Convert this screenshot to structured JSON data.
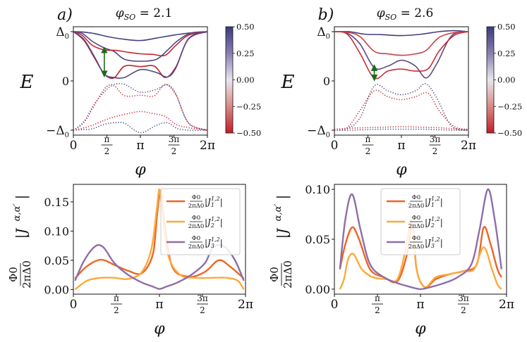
{
  "chart_data": [
    {
      "id": "a",
      "type": "line",
      "panel_label": "a)",
      "title": "φ_SO = 2.1",
      "title_phi": "φ",
      "title_sub": "SO",
      "title_val": "= 2.1",
      "xlabel": "φ",
      "ylabel": "E",
      "xlim": [
        0,
        6.2832
      ],
      "ylim": [
        -1.1,
        1.1
      ],
      "xticks": [
        0,
        1.5708,
        3.1416,
        4.7124,
        6.2832
      ],
      "yticks": [
        -1,
        0,
        1
      ],
      "ytick_labels": [
        "−Δ0",
        "0",
        "Δ0"
      ],
      "colorbar": {
        "range": [
          -0.5,
          0.5
        ],
        "ticks": [
          0.5,
          0.25,
          0.0,
          -0.25,
          -0.5
        ],
        "labels": [
          "0.50",
          "0.25",
          "0.00",
          "−0.25",
          "−0.50"
        ],
        "colors": [
          "#3b3b7e",
          "#c31d26"
        ]
      },
      "arrow": {
        "x": 1.45,
        "y1": 0.63,
        "y2": 0.14
      },
      "solid_series": [
        {
          "name": "band1",
          "tint": 0.45,
          "x": [
            0,
            0.5,
            1.0,
            1.6,
            2.3,
            3.1416,
            3.9,
            4.7,
            5.4,
            5.9,
            6.2832
          ],
          "y": [
            1.0,
            0.99,
            0.96,
            0.9,
            0.85,
            0.82,
            0.87,
            0.93,
            0.97,
            0.99,
            1.0
          ]
        },
        {
          "name": "band2",
          "tint": 0.35,
          "x": [
            0,
            0.4,
            0.9,
            1.45,
            1.9,
            2.4,
            3.1416,
            3.9,
            4.4,
            4.9,
            5.5,
            6.2832
          ],
          "y": [
            1.0,
            0.97,
            0.8,
            0.67,
            0.6,
            0.44,
            0.4,
            0.44,
            0.62,
            0.82,
            0.97,
            1.0
          ]
        },
        {
          "name": "band3",
          "tint": -0.4,
          "x": [
            0,
            0.4,
            0.9,
            1.45,
            2.0,
            2.6,
            3.1416,
            3.7,
            4.3,
            4.8,
            5.4,
            6.2832
          ],
          "y": [
            1.0,
            0.93,
            0.72,
            0.63,
            0.62,
            0.58,
            0.55,
            0.54,
            0.52,
            0.72,
            0.93,
            1.0
          ]
        },
        {
          "name": "band4",
          "tint": -0.45,
          "x": [
            0,
            0.5,
            1.0,
            1.45,
            1.9,
            2.4,
            3.1416,
            3.8,
            4.3,
            4.8,
            5.4,
            6.2832
          ],
          "y": [
            1.0,
            0.82,
            0.46,
            0.14,
            0.06,
            0.3,
            0.29,
            0.3,
            0.07,
            0.28,
            0.85,
            1.0
          ]
        },
        {
          "name": "band5",
          "tint": 0.35,
          "x": [
            0,
            0.5,
            1.0,
            1.45,
            1.9,
            2.4,
            3.1416,
            3.9,
            4.4,
            4.8,
            5.4,
            6.2832
          ],
          "y": [
            1.0,
            0.84,
            0.48,
            0.14,
            0.07,
            0.07,
            0.23,
            0.17,
            0.08,
            0.26,
            0.86,
            1.0
          ]
        }
      ],
      "dotted_series": [
        {
          "name": "d1",
          "tint": 0.4,
          "x": [
            0,
            0.5,
            1.0,
            1.5,
            1.9,
            2.4,
            3.1416,
            3.9,
            4.4,
            4.8,
            5.4,
            6.2832
          ],
          "y": [
            -1.0,
            -0.84,
            -0.48,
            -0.14,
            -0.07,
            -0.07,
            -0.23,
            -0.17,
            -0.08,
            -0.26,
            -0.86,
            -1.0
          ]
        },
        {
          "name": "d2",
          "tint": -0.4,
          "x": [
            0,
            0.5,
            1.0,
            1.5,
            1.9,
            2.4,
            3.1416,
            3.8,
            4.3,
            4.8,
            5.4,
            6.2832
          ],
          "y": [
            -1.0,
            -0.82,
            -0.46,
            -0.2,
            -0.1,
            -0.3,
            -0.29,
            -0.3,
            -0.07,
            -0.28,
            -0.85,
            -1.0
          ]
        },
        {
          "name": "d3",
          "tint": -0.4,
          "x": [
            0,
            0.4,
            0.9,
            1.45,
            2.0,
            2.6,
            3.1416,
            3.7,
            4.3,
            4.8,
            5.4,
            6.2832
          ],
          "y": [
            -1.0,
            -0.96,
            -0.9,
            -0.8,
            -0.72,
            -0.66,
            -0.62,
            -0.66,
            -0.72,
            -0.88,
            -0.95,
            -1.0
          ]
        },
        {
          "name": "d4",
          "tint": 0.4,
          "x": [
            0,
            0.4,
            0.9,
            1.45,
            1.9,
            2.4,
            3.1416,
            3.9,
            4.4,
            4.9,
            5.5,
            6.2832
          ],
          "y": [
            -1.0,
            -0.99,
            -0.97,
            -0.88,
            -0.85,
            -0.86,
            -1.05,
            -0.9,
            -0.85,
            -0.97,
            -1.0,
            -1.0
          ]
        }
      ]
    },
    {
      "id": "b",
      "type": "line",
      "panel_label": "b)",
      "title": "φ_SO = 2.6",
      "title_phi": "φ",
      "title_sub": "SO",
      "title_val": "= 2.6",
      "xlabel": "φ",
      "ylabel": "E",
      "xlim": [
        0,
        6.2832
      ],
      "ylim": [
        -1.1,
        1.1
      ],
      "xticks": [
        0,
        1.5708,
        3.1416,
        4.7124,
        6.2832
      ],
      "yticks": [
        -1,
        0,
        1
      ],
      "ytick_labels": [
        "−Δ0",
        "0",
        "Δ0"
      ],
      "colorbar": {
        "range": [
          -0.5,
          0.5
        ],
        "ticks": [
          0.5,
          0.25,
          0.0,
          -0.25,
          -0.5
        ],
        "labels": [
          "0.50",
          "0.25",
          "0.00",
          "−0.25",
          "−0.50"
        ],
        "colors": [
          "#3b3b7e",
          "#c31d26"
        ]
      },
      "arrow": {
        "x": 1.87,
        "y1": 0.27,
        "y2": 0.06
      },
      "solid_series": [
        {
          "name": "band1",
          "tint": 0.45,
          "x": [
            0,
            0.7,
            1.4,
            2.2,
            3.1416,
            4.1,
            4.9,
            5.6,
            6.2832
          ],
          "y": [
            1.0,
            1.0,
            0.95,
            0.94,
            0.92,
            0.95,
            1.0,
            1.02,
            1.0
          ]
        },
        {
          "name": "band2",
          "tint": 0.3,
          "x": [
            0,
            0.6,
            1.2,
            1.87,
            2.5,
            3.1416,
            3.8,
            4.3,
            4.8,
            5.5,
            6.2832
          ],
          "y": [
            1.0,
            0.97,
            0.75,
            0.27,
            0.3,
            0.42,
            0.3,
            0.06,
            0.35,
            0.92,
            1.0
          ]
        },
        {
          "name": "band3",
          "tint": -0.35,
          "x": [
            0,
            0.6,
            1.2,
            1.87,
            2.5,
            3.1416,
            3.8,
            4.4,
            4.9,
            5.6,
            6.2832
          ],
          "y": [
            1.0,
            0.95,
            0.56,
            0.06,
            0.2,
            0.24,
            0.2,
            0.25,
            0.6,
            0.92,
            1.0
          ]
        },
        {
          "name": "band4",
          "tint": -0.2,
          "x": [
            0,
            0.6,
            1.2,
            1.87,
            2.5,
            3.1416,
            3.8,
            4.3,
            4.9,
            5.6,
            6.2832
          ],
          "y": [
            1.0,
            0.99,
            0.9,
            0.6,
            0.55,
            0.52,
            0.55,
            0.62,
            0.88,
            0.98,
            1.0
          ]
        }
      ],
      "dotted_series": [
        {
          "name": "d1",
          "tint": 0.4,
          "x": [
            0,
            0.6,
            1.2,
            1.87,
            2.5,
            3.1416,
            3.8,
            4.3,
            4.8,
            5.5,
            6.2832
          ],
          "y": [
            -1.0,
            -0.97,
            -0.75,
            -0.1,
            -0.2,
            -0.28,
            -0.2,
            -0.06,
            -0.35,
            -0.92,
            -1.0
          ]
        },
        {
          "name": "d2",
          "tint": -0.4,
          "x": [
            0,
            0.6,
            1.2,
            1.87,
            2.5,
            3.1416,
            3.8,
            4.4,
            4.9,
            5.6,
            6.2832
          ],
          "y": [
            -1.0,
            -0.95,
            -0.6,
            -0.2,
            -0.32,
            -0.38,
            -0.32,
            -0.25,
            -0.6,
            -0.92,
            -1.0
          ]
        },
        {
          "name": "d3",
          "tint": -0.4,
          "x": [
            0,
            0.7,
            1.4,
            2.2,
            3.1416,
            4.1,
            4.9,
            5.6,
            6.2832
          ],
          "y": [
            -0.98,
            -0.96,
            -0.95,
            -0.94,
            -0.93,
            -0.94,
            -0.95,
            -0.97,
            -0.98
          ]
        },
        {
          "name": "d4",
          "tint": 0.4,
          "x": [
            0,
            0.7,
            1.4,
            2.2,
            3.1416,
            4.1,
            4.9,
            5.6,
            6.2832
          ],
          "y": [
            -1.0,
            -1.0,
            -0.99,
            -0.98,
            -0.98,
            -0.98,
            -0.99,
            -1.0,
            -1.0
          ]
        }
      ]
    },
    {
      "id": "c",
      "type": "line",
      "xlabel": "φ",
      "ylabel_top": "Φ0",
      "ylabel_bottom": "2πΔ0",
      "ylabel_rest": "|J^{α,α′}|",
      "xlim": [
        0,
        6.2832
      ],
      "ylim": [
        -0.008,
        0.18
      ],
      "xticks": [
        0,
        1.5708,
        3.1416,
        4.7124,
        6.2832
      ],
      "yticks": [
        0.0,
        0.05,
        0.1,
        0.15
      ],
      "ytick_labels": [
        "0.00",
        "0.05",
        "0.10",
        "0.15"
      ],
      "legend_position": "top-right",
      "series": [
        {
          "name": "J1",
          "legend_frac_top": "Φ0",
          "legend_frac_bottom": "2πΔ0",
          "legend_text": "|J1^{1,2}|",
          "color": "#ee6524",
          "x": [
            0.06,
            0.5,
            1.0,
            1.5,
            2.0,
            2.5,
            2.9,
            3.05,
            3.18,
            3.3,
            3.6,
            4.2,
            4.8,
            5.3,
            5.7,
            6.22
          ],
          "y": [
            0.019,
            0.04,
            0.051,
            0.042,
            0.032,
            0.028,
            0.06,
            0.125,
            0.17,
            0.125,
            0.04,
            0.022,
            0.03,
            0.05,
            0.04,
            0.019
          ]
        },
        {
          "name": "J2",
          "legend_frac_top": "Φ0",
          "legend_frac_bottom": "2πΔ0",
          "legend_text": "|J2^{1,2}|",
          "color": "#fbaa3c",
          "x": [
            0.06,
            0.5,
            1.0,
            1.5,
            2.0,
            2.5,
            2.85,
            3.05,
            3.14,
            3.23,
            3.45,
            3.9,
            4.5,
            5.1,
            5.6,
            6.0,
            6.22
          ],
          "y": [
            0.0,
            0.015,
            0.02,
            0.02,
            0.018,
            0.03,
            0.07,
            0.14,
            0.172,
            0.14,
            0.06,
            0.025,
            0.02,
            0.02,
            0.02,
            0.015,
            0.0
          ]
        },
        {
          "name": "J3",
          "legend_frac_top": "Φ0",
          "legend_frac_bottom": "2πΔ0",
          "legend_text": "|J3^{1,2}|",
          "color": "#8e6ea8",
          "x": [
            0.06,
            0.4,
            0.8,
            1.1,
            1.5,
            2.0,
            2.5,
            2.9,
            3.1416,
            3.4,
            3.8,
            4.3,
            4.8,
            5.1,
            5.5,
            5.9,
            6.22
          ],
          "y": [
            0.015,
            0.05,
            0.074,
            0.072,
            0.045,
            0.025,
            0.012,
            0.005,
            0.001,
            0.005,
            0.012,
            0.025,
            0.045,
            0.072,
            0.074,
            0.05,
            0.015
          ]
        }
      ]
    },
    {
      "id": "d",
      "type": "line",
      "xlabel": "φ",
      "ylabel_top": "Φ0",
      "ylabel_bottom": "2πΔ0",
      "ylabel_rest": "|J^{α,α′}|",
      "xlim": [
        0,
        6.2832
      ],
      "ylim": [
        -0.005,
        0.105
      ],
      "xticks": [
        0,
        1.5708,
        3.1416,
        4.7124,
        6.2832
      ],
      "yticks": [
        0.0,
        0.05,
        0.1
      ],
      "ytick_labels": [
        "0.00",
        "0.05",
        "0.10"
      ],
      "legend_position": "top-center",
      "series": [
        {
          "name": "J1",
          "legend_frac_top": "Φ0",
          "legend_frac_bottom": "2πΔ0",
          "legend_text": "|J1^{1,2}|",
          "color": "#ee6524",
          "x": [
            0.2,
            0.4,
            0.65,
            0.9,
            1.3,
            1.8,
            2.3,
            2.65,
            2.85,
            3.0,
            3.3,
            3.7,
            4.2,
            4.7,
            5.2,
            5.45,
            5.7,
            5.95,
            6.1
          ],
          "y": [
            0.02,
            0.045,
            0.062,
            0.05,
            0.02,
            0.012,
            0.008,
            0.035,
            0.065,
            0.02,
            0.002,
            0.01,
            0.015,
            0.018,
            0.025,
            0.062,
            0.045,
            0.02,
            0.012
          ]
        },
        {
          "name": "J2",
          "legend_frac_top": "Φ0",
          "legend_frac_bottom": "2πΔ0",
          "legend_text": "|J2^{1,2}|",
          "color": "#fbaa3c",
          "x": [
            0.2,
            0.35,
            0.5,
            0.7,
            1.0,
            1.4,
            1.9,
            2.3,
            2.6,
            2.82,
            3.0,
            3.3,
            3.7,
            4.2,
            4.7,
            5.1,
            5.45,
            5.75,
            5.95,
            6.1
          ],
          "y": [
            0.0,
            0.01,
            0.03,
            0.035,
            0.02,
            0.012,
            0.01,
            0.01,
            0.04,
            0.07,
            0.02,
            0.002,
            0.012,
            0.015,
            0.018,
            0.02,
            0.042,
            0.02,
            0.005,
            0.0
          ]
        },
        {
          "name": "J3",
          "legend_frac_top": "Φ0",
          "legend_frac_bottom": "2πΔ0",
          "legend_text": "|J3^{1,2}|",
          "color": "#8e6ea8",
          "x": [
            0.2,
            0.4,
            0.65,
            0.95,
            1.3,
            1.8,
            2.3,
            2.8,
            3.1416,
            3.5,
            4.0,
            4.5,
            5.0,
            5.3,
            5.6,
            5.85,
            6.1
          ],
          "y": [
            0.02,
            0.07,
            0.095,
            0.06,
            0.025,
            0.012,
            0.006,
            0.002,
            0.0,
            0.002,
            0.006,
            0.012,
            0.025,
            0.06,
            0.1,
            0.07,
            0.02
          ]
        }
      ]
    }
  ]
}
